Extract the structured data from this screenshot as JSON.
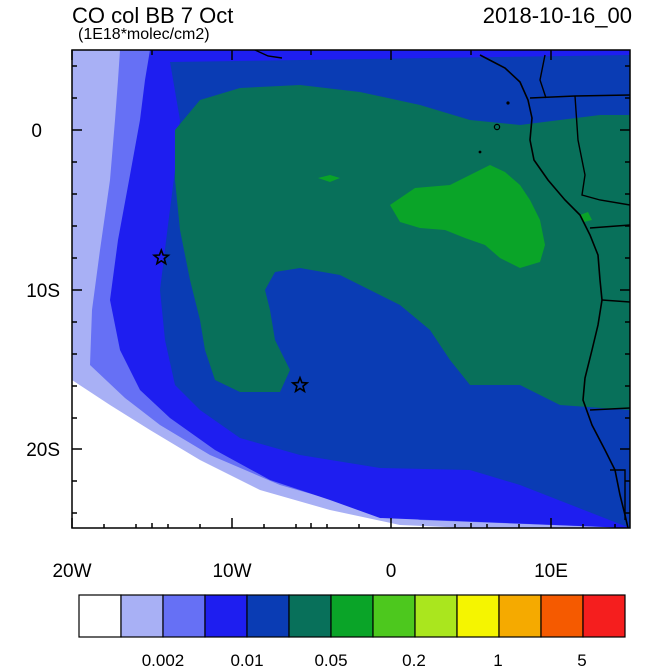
{
  "title": {
    "left": "CO col BB 7 Oct",
    "units": "(1E18*molec/cm2)",
    "right": "2018-10-16_00"
  },
  "axes": {
    "x_ticks": [
      "20W",
      "10W",
      "0",
      "10E"
    ],
    "y_ticks": [
      "0",
      "10S",
      "20S"
    ]
  },
  "colorbar": {
    "colors": [
      "#ffffff",
      "#a8b0f5",
      "#6670f5",
      "#1e1ef0",
      "#0a3cb4",
      "#08705a",
      "#0aa428",
      "#4dc81e",
      "#aae61e",
      "#f5f500",
      "#f5aa00",
      "#f55a00",
      "#f51e1e"
    ],
    "labels": [
      "0.002",
      "0.01",
      "0.05",
      "0.2",
      "1",
      "5"
    ]
  },
  "markers": [
    {
      "name": "star-west",
      "lon": -14.4,
      "lat": -8.0
    },
    {
      "name": "star-south",
      "lon": -5.7,
      "lat": -16.0
    }
  ]
}
